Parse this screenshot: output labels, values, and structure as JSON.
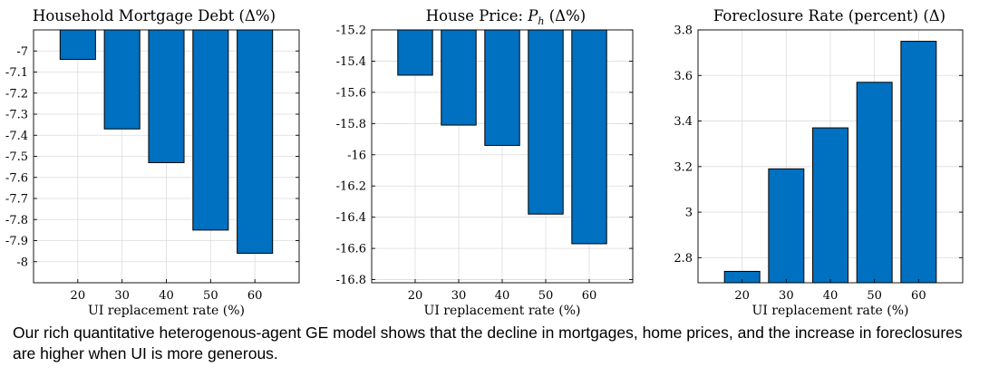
{
  "caption": "Our rich quantitative heterogenous-agent GE model shows that the decline in mortgages, home prices, and the increase in foreclosures are higher when UI is more generous.",
  "colors": {
    "bar": "#0070c0",
    "bar_edge": "#000000",
    "grid": "#dcdcdc",
    "axis": "#000000"
  },
  "chart_data": [
    {
      "type": "bar",
      "title": "Household Mortgage Debt (Δ%)",
      "xlabel": "UI replacement rate (%)",
      "ylabel": "",
      "categories": [
        "20",
        "30",
        "40",
        "50",
        "60"
      ],
      "values": [
        -7.04,
        -7.37,
        -7.53,
        -7.85,
        -7.96
      ],
      "ylim": [
        -8.1,
        -6.9
      ],
      "yticks": [
        -7,
        -7.1,
        -7.2,
        -7.3,
        -7.4,
        -7.5,
        -7.6,
        -7.7,
        -7.8,
        -7.9,
        -8
      ],
      "ytick_labels": [
        "-7",
        "-7.1",
        "-7.2",
        "-7.3",
        "-7.4",
        "-7.5",
        "-7.6",
        "-7.7",
        "-7.8",
        "-7.9",
        "-8"
      ],
      "baseline": -6.9,
      "grid": true
    },
    {
      "type": "bar",
      "title": "House Price: P_h (Δ%)",
      "title_parts": {
        "before": "House Price: ",
        "symbol": "P",
        "subscript": "h",
        "after": " (Δ%)"
      },
      "xlabel": "UI replacement rate (%)",
      "ylabel": "",
      "categories": [
        "20",
        "30",
        "40",
        "50",
        "60"
      ],
      "values": [
        -15.49,
        -15.81,
        -15.94,
        -16.38,
        -16.57
      ],
      "ylim": [
        -16.82,
        -15.2
      ],
      "yticks": [
        -15.2,
        -15.4,
        -15.6,
        -15.8,
        -16,
        -16.2,
        -16.4,
        -16.6,
        -16.8
      ],
      "ytick_labels": [
        "-15.2",
        "-15.4",
        "-15.6",
        "-15.8",
        "-16",
        "-16.2",
        "-16.4",
        "-16.6",
        "-16.8"
      ],
      "baseline": -15.2,
      "grid": true
    },
    {
      "type": "bar",
      "title": "Foreclosure Rate (percent) (Δ)",
      "xlabel": "UI replacement rate (%)",
      "ylabel": "",
      "categories": [
        "20",
        "30",
        "40",
        "50",
        "60"
      ],
      "values": [
        2.74,
        3.19,
        3.37,
        3.57,
        3.75
      ],
      "ylim": [
        2.69,
        3.8
      ],
      "yticks": [
        2.8,
        3,
        3.2,
        3.4,
        3.6,
        3.8
      ],
      "ytick_labels": [
        "2.8",
        "3",
        "3.2",
        "3.4",
        "3.6",
        "3.8"
      ],
      "baseline": 2.69,
      "grid": true
    }
  ]
}
